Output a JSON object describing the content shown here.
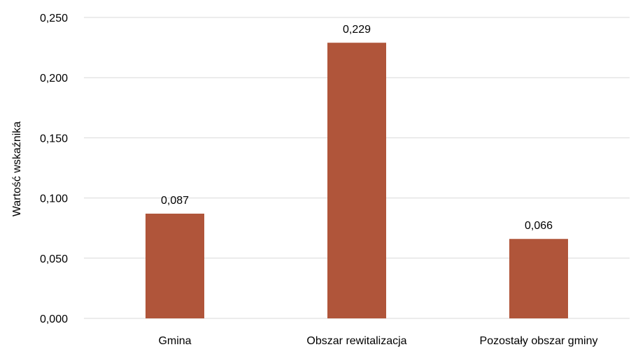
{
  "chart_data": {
    "type": "bar",
    "categories": [
      "Gmina",
      "Obszar rewitalizacja",
      "Pozostały obszar gminy"
    ],
    "values": [
      0.087,
      0.229,
      0.066
    ],
    "value_labels": [
      "0,087",
      "0,229",
      "0,066"
    ],
    "ylabel": "Wartość wskaźnika",
    "ylim": [
      0,
      0.25
    ],
    "yticks": [
      0,
      0.05,
      0.1,
      0.15,
      0.2,
      0.25
    ],
    "ytick_labels": [
      "0,000",
      "0,050",
      "0,100",
      "0,150",
      "0,200",
      "0,250"
    ],
    "grid": true,
    "legend": "none",
    "colors": {
      "bar": "#b0553a",
      "grid": "#d9d9d9"
    }
  }
}
